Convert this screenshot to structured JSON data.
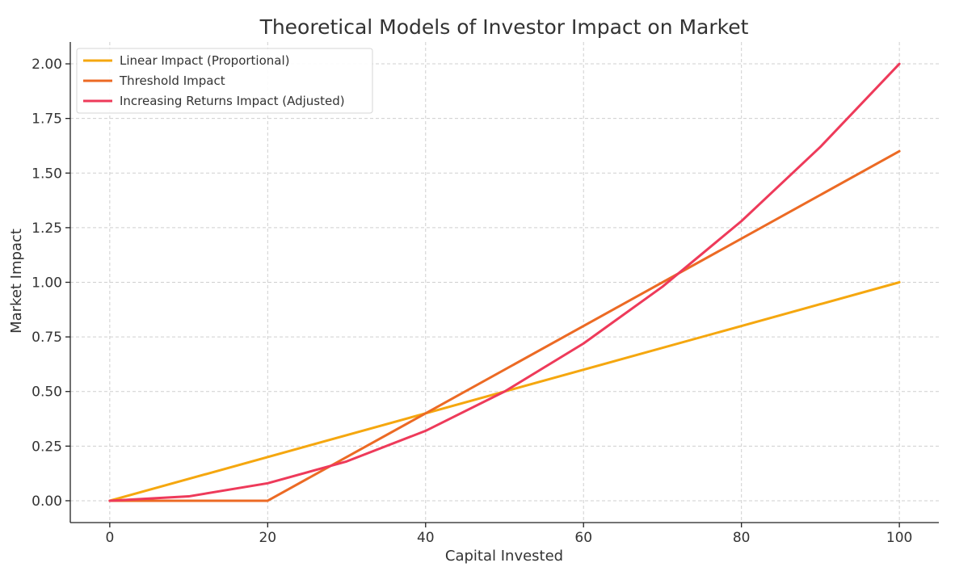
{
  "chart_data": {
    "type": "line",
    "title": "Theoretical Models of Investor Impact on Market",
    "xlabel": "Capital Invested",
    "ylabel": "Market Impact",
    "xlim": [
      -5,
      105
    ],
    "ylim": [
      -0.1,
      2.1
    ],
    "x_ticks": [
      0,
      20,
      40,
      60,
      80,
      100
    ],
    "y_ticks": [
      0.0,
      0.25,
      0.5,
      0.75,
      1.0,
      1.25,
      1.5,
      1.75,
      2.0
    ],
    "x_tick_labels": [
      "0",
      "20",
      "40",
      "60",
      "80",
      "100"
    ],
    "y_tick_labels": [
      "0.00",
      "0.25",
      "0.50",
      "0.75",
      "1.00",
      "1.25",
      "1.50",
      "1.75",
      "2.00"
    ],
    "grid": true,
    "legend_position": "top-left",
    "series": [
      {
        "name": "Linear Impact (Proportional)",
        "color": "#f5a70f",
        "x": [
          0,
          100
        ],
        "y": [
          0.0,
          1.0
        ]
      },
      {
        "name": "Threshold Impact",
        "color": "#ec6a24",
        "x": [
          0,
          20,
          100
        ],
        "y": [
          0.0,
          0.0,
          1.6
        ]
      },
      {
        "name": "Increasing Returns Impact (Adjusted)",
        "color": "#ee3a5a",
        "x": [
          0,
          10,
          20,
          30,
          40,
          50,
          60,
          70,
          80,
          90,
          100
        ],
        "y": [
          0.0,
          0.02,
          0.08,
          0.18,
          0.32,
          0.5,
          0.72,
          0.98,
          1.28,
          1.62,
          2.0
        ]
      }
    ]
  }
}
